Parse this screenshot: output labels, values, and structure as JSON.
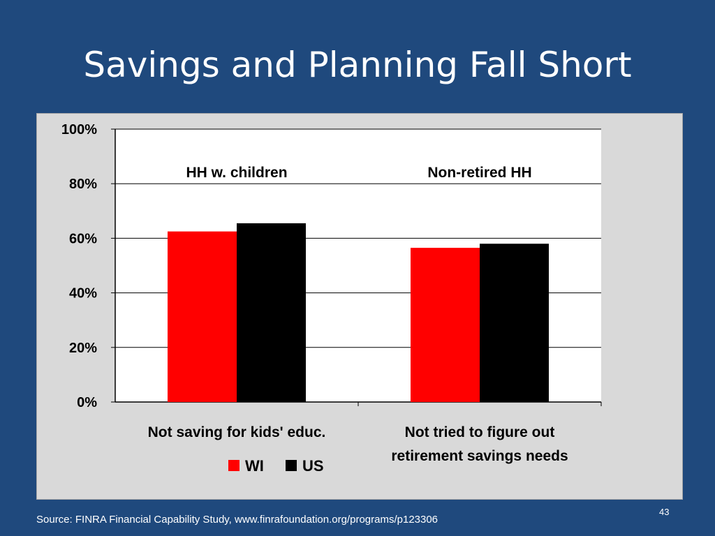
{
  "slide": {
    "title": "Savings and Planning Fall Short",
    "source": "Source: FINRA Financial Capability Study, www.finrafoundation.org/programs/p123306",
    "page_number": "43"
  },
  "chart_data": {
    "type": "bar",
    "categories": [
      [
        "Not saving for kids' educ."
      ],
      [
        "Not tried to figure out",
        "retirement savings needs"
      ]
    ],
    "annotations": [
      "HH w. children",
      "Non-retired HH"
    ],
    "series": [
      {
        "name": "WI",
        "values": [
          62.5,
          56.5
        ],
        "color": "#ff0000"
      },
      {
        "name": "US",
        "values": [
          65.5,
          58.0
        ],
        "color": "#000000"
      }
    ],
    "ylim": [
      0,
      100
    ],
    "yticks": [
      "0%",
      "20%",
      "40%",
      "60%",
      "80%",
      "100%"
    ],
    "ytick_values": [
      0,
      20,
      40,
      60,
      80,
      100
    ],
    "grid": true,
    "legend": "bottom",
    "plot_background": "#ffffff",
    "frame_background": "#d9d9d9"
  }
}
